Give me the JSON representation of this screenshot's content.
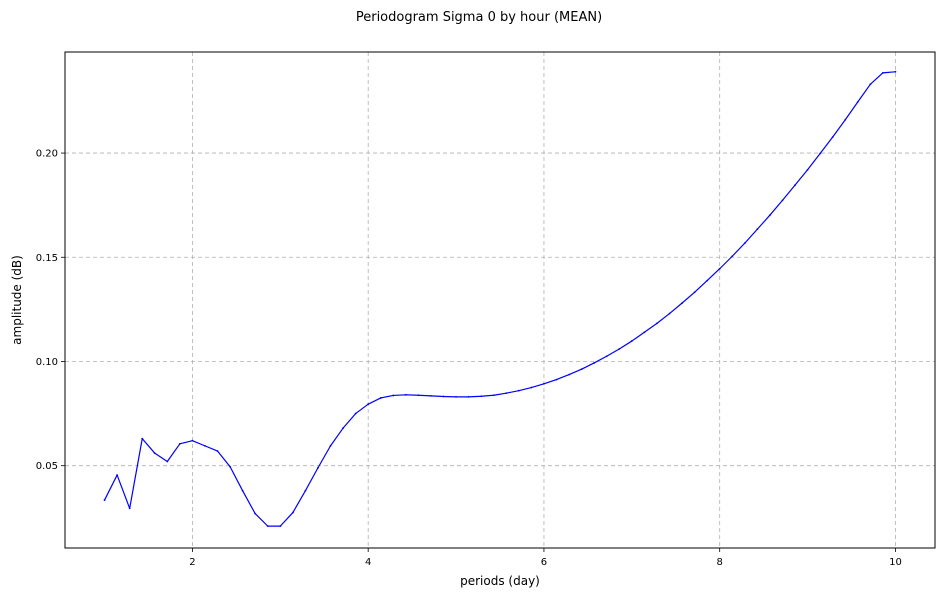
{
  "chart_data": {
    "type": "line",
    "title": "Periodogram Sigma 0 by hour (MEAN)",
    "xlabel": "periods (day)",
    "ylabel": "amplitude (dB)",
    "xlim": [
      0.55,
      10.45
    ],
    "ylim": [
      0.0105,
      0.2485
    ],
    "x_ticks": [
      2,
      4,
      6,
      8,
      10
    ],
    "x_tick_labels": [
      "2",
      "4",
      "6",
      "8",
      "10"
    ],
    "y_ticks": [
      0.05,
      0.1,
      0.15,
      0.2
    ],
    "y_tick_labels": [
      "0.05",
      "0.10",
      "0.15",
      "0.20"
    ],
    "grid": true,
    "grid_style": "dashed",
    "legend": "none",
    "series": [
      {
        "color": "#0000ff",
        "x": [
          1.0,
          1.143,
          1.286,
          1.429,
          1.571,
          1.714,
          1.857,
          2.0,
          2.143,
          2.286,
          2.429,
          2.571,
          2.714,
          2.857,
          3.0,
          3.143,
          3.286,
          3.429,
          3.571,
          3.714,
          3.857,
          4.0,
          4.143,
          4.286,
          4.429,
          4.571,
          4.714,
          4.857,
          5.0,
          5.143,
          5.286,
          5.429,
          5.571,
          5.714,
          5.857,
          6.0,
          6.143,
          6.286,
          6.429,
          6.571,
          6.714,
          6.857,
          7.0,
          7.143,
          7.286,
          7.429,
          7.571,
          7.714,
          7.857,
          8.0,
          8.143,
          8.286,
          8.429,
          8.571,
          8.714,
          8.857,
          9.0,
          9.143,
          9.286,
          9.429,
          9.571,
          9.714,
          9.857,
          10.0
        ],
        "y": [
          0.0335,
          0.0455,
          0.0295,
          0.063,
          0.056,
          0.052,
          0.0605,
          0.062,
          0.0595,
          0.057,
          0.0495,
          0.038,
          0.027,
          0.021,
          0.021,
          0.0275,
          0.038,
          0.049,
          0.0595,
          0.068,
          0.075,
          0.0795,
          0.0825,
          0.0837,
          0.084,
          0.0838,
          0.0835,
          0.0832,
          0.083,
          0.083,
          0.0833,
          0.0838,
          0.0848,
          0.086,
          0.0875,
          0.0893,
          0.0913,
          0.0937,
          0.0963,
          0.0993,
          0.1025,
          0.106,
          0.1098,
          0.114,
          0.1183,
          0.123,
          0.128,
          0.1332,
          0.1388,
          0.1445,
          0.1505,
          0.1568,
          0.1635,
          0.1702,
          0.1773,
          0.1846,
          0.192,
          0.1998,
          0.2077,
          0.216,
          0.2245,
          0.233,
          0.2385,
          0.239
        ]
      }
    ]
  }
}
